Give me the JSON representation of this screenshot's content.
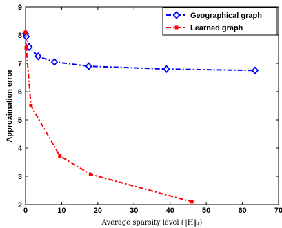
{
  "chart_data": {
    "type": "line",
    "title": "",
    "xlabel": "Average sparsity level (‖H‖₁)",
    "ylabel": "Approximation error",
    "xlim": [
      0,
      70
    ],
    "ylim": [
      2,
      9
    ],
    "xticks": [
      "0",
      "10",
      "20",
      "30",
      "40",
      "50",
      "60",
      "70"
    ],
    "yticks": [
      "2",
      "3",
      "4",
      "5",
      "6",
      "7",
      "8",
      "9"
    ],
    "grid": false,
    "legend_position": "top-right",
    "series": [
      {
        "name": "Geographical graph",
        "color": "#0000ff",
        "marker": "diamond",
        "line": "dash-dot",
        "x": [
          0,
          0.2,
          1.0,
          3.5,
          8.0,
          17.5,
          39.0,
          63.5
        ],
        "y": [
          8.05,
          7.95,
          7.58,
          7.25,
          7.05,
          6.9,
          6.8,
          6.75
        ]
      },
      {
        "name": "Learned graph",
        "color": "#ff0000",
        "marker": "square",
        "line": "dash-dot",
        "x": [
          0,
          0.2,
          1.5,
          9.5,
          18.0,
          46.0
        ],
        "y": [
          8.1,
          7.55,
          5.5,
          3.72,
          3.07,
          2.1
        ]
      }
    ]
  }
}
